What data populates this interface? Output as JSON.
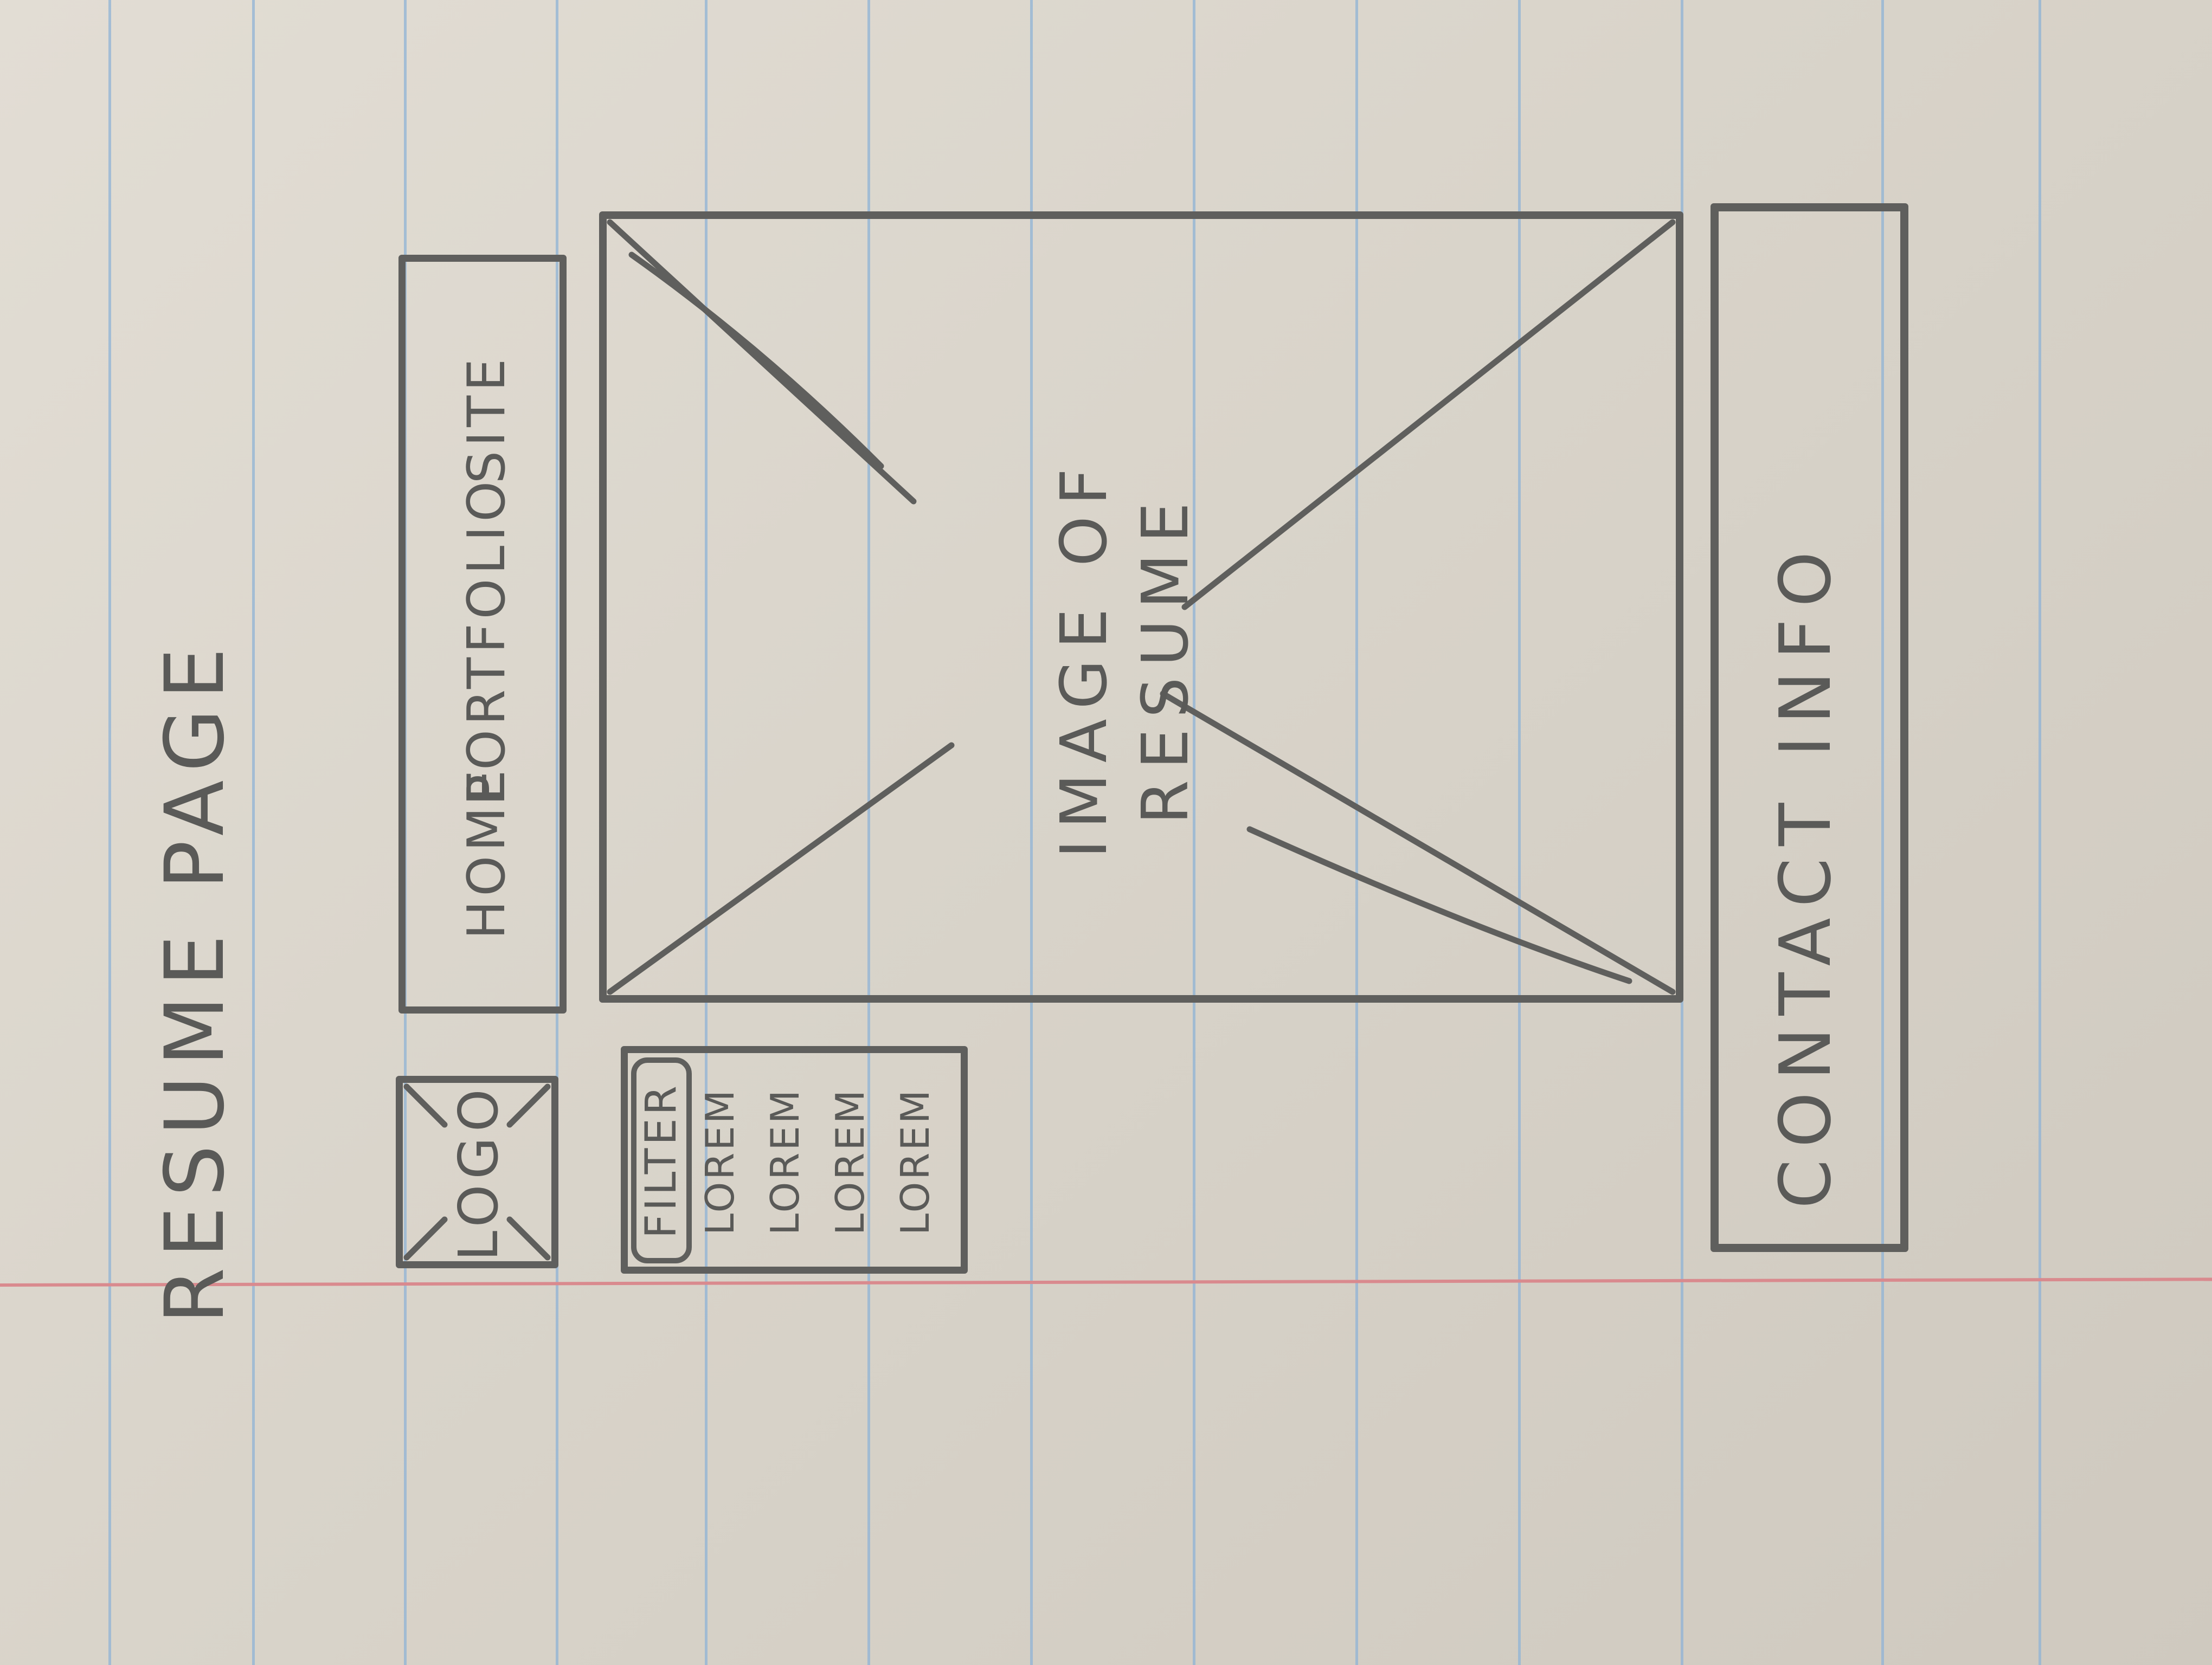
{
  "page_title": "RESUME PAGE",
  "logo_label": "LOGO",
  "nav": {
    "items": [
      "HOME",
      "PORTFOLIO",
      "SITE"
    ]
  },
  "filter": {
    "label": "FILTER",
    "items": [
      "LOREM",
      "LOREM",
      "LOREM",
      "LOREM"
    ]
  },
  "resume_image": {
    "line1": "IMAGE OF",
    "line2": "RESUME"
  },
  "contact_label": "CONTACT INFO",
  "colors": {
    "pencil": "#5f5f5d",
    "paper": "#dcd7ce",
    "rule": "#8fb3d6",
    "margin": "#d98a8e"
  }
}
